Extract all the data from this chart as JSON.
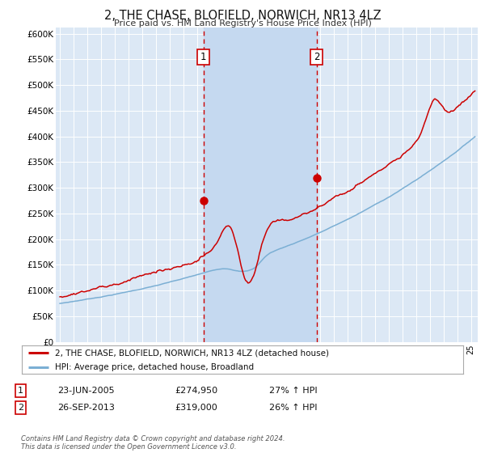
{
  "title": "2, THE CHASE, BLOFIELD, NORWICH, NR13 4LZ",
  "subtitle": "Price paid vs. HM Land Registry's House Price Index (HPI)",
  "ylim": [
    0,
    612500
  ],
  "xlim_start": 1994.7,
  "xlim_end": 2025.5,
  "background_color": "#ffffff",
  "plot_bg_color": "#dce8f5",
  "grid_color": "#ffffff",
  "shade_color": "#c5d9f0",
  "red_line_color": "#cc0000",
  "blue_line_color": "#7bafd4",
  "sale1_x": 2005.47,
  "sale1_y": 274950,
  "sale2_x": 2013.73,
  "sale2_y": 319000,
  "legend_red_label": "2, THE CHASE, BLOFIELD, NORWICH, NR13 4LZ (detached house)",
  "legend_blue_label": "HPI: Average price, detached house, Broadland",
  "sale1_date": "23-JUN-2005",
  "sale1_price": "£274,950",
  "sale1_hpi": "27% ↑ HPI",
  "sale2_date": "26-SEP-2013",
  "sale2_price": "£319,000",
  "sale2_hpi": "26% ↑ HPI",
  "footer": "Contains HM Land Registry data © Crown copyright and database right 2024.\nThis data is licensed under the Open Government Licence v3.0.",
  "ytick_vals": [
    0,
    50000,
    100000,
    150000,
    200000,
    250000,
    300000,
    350000,
    400000,
    450000,
    500000,
    550000,
    600000
  ],
  "ytick_labels": [
    "£0",
    "£50K",
    "£100K",
    "£150K",
    "£200K",
    "£250K",
    "£300K",
    "£350K",
    "£400K",
    "£450K",
    "£500K",
    "£550K",
    "£600K"
  ]
}
